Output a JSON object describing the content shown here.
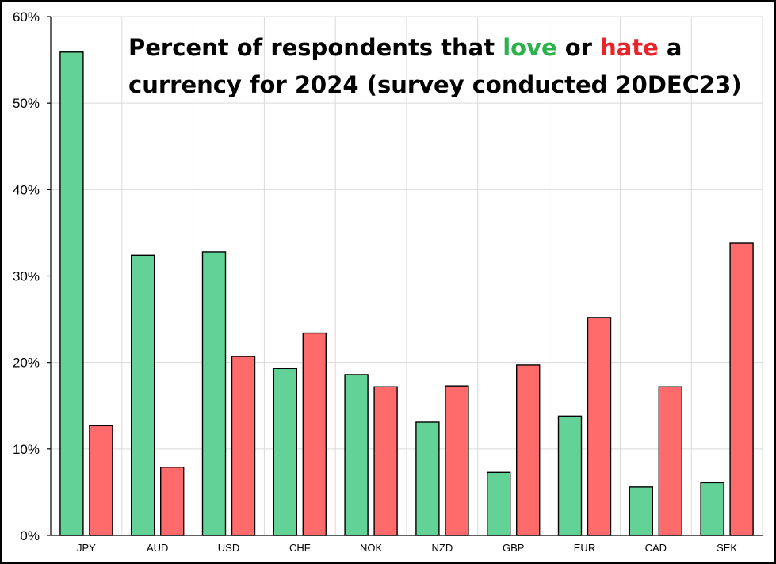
{
  "chart_data": {
    "type": "bar",
    "title": {
      "line1": {
        "pre": "Percent of respondents that ",
        "love": "love",
        "mid": " or ",
        "hate": "hate",
        "post": " a"
      },
      "line2": "currency for 2024 (survey conducted 20DEC23)"
    },
    "categories": [
      "JPY",
      "AUD",
      "USD",
      "CHF",
      "NOK",
      "NZD",
      "GBP",
      "EUR",
      "CAD",
      "SEK"
    ],
    "series": [
      {
        "key": "love",
        "color": "#63D297",
        "values": [
          55.9,
          32.4,
          32.8,
          19.3,
          18.6,
          13.1,
          7.3,
          13.8,
          5.6,
          6.1
        ]
      },
      {
        "key": "hate",
        "color": "#FF6B6B",
        "values": [
          12.7,
          7.9,
          20.7,
          23.4,
          17.2,
          17.3,
          19.7,
          25.2,
          17.2,
          33.8
        ]
      }
    ],
    "ylim": [
      0,
      60
    ],
    "yticks": [
      "0%",
      "10%",
      "20%",
      "30%",
      "40%",
      "50%",
      "60%"
    ],
    "ytick_values": [
      0,
      10,
      20,
      30,
      40,
      50,
      60
    ],
    "grid": true,
    "legend": "none",
    "title_colors": {
      "love": "#2BB24C",
      "hate": "#E8232A"
    }
  }
}
